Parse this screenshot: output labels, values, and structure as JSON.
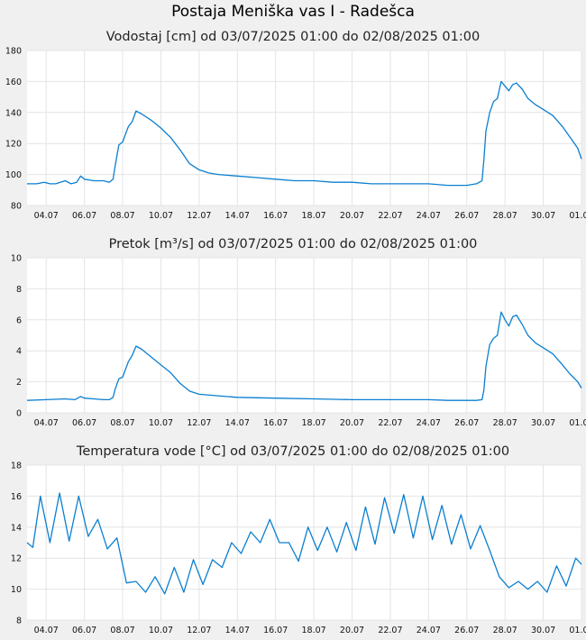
{
  "page": {
    "title": "Postaja Meniška vas I - Radešca"
  },
  "colors": {
    "line": "#0a7fd0",
    "plot_bg": "#ffffff",
    "grid": "#e4e4e4",
    "page_bg": "#f0f0f0"
  },
  "chart_data": [
    {
      "type": "line",
      "title": "Vodostaj [cm] od 03/07/2025 01:00 do 02/08/2025 01:00",
      "ylim": [
        80,
        180
      ],
      "yticks": [
        80,
        100,
        120,
        140,
        160,
        180
      ],
      "xticks": [
        "04.07",
        "06.07",
        "08.07",
        "10.07",
        "12.07",
        "14.07",
        "16.07",
        "18.07",
        "20.07",
        "22.07",
        "24.07",
        "26.07",
        "28.07",
        "30.07",
        "01.08"
      ],
      "grid": true,
      "series": [
        {
          "x": [
            3.0,
            3.5,
            3.9,
            4.2,
            4.5,
            5.0,
            5.3,
            5.6,
            5.8,
            6.0,
            6.5,
            7.0,
            7.3,
            7.5,
            7.6,
            7.8,
            8.0,
            8.3,
            8.5,
            8.7,
            9.0,
            9.5,
            10.0,
            10.5,
            11.0,
            11.5,
            12.0,
            12.5,
            13.0,
            14.0,
            15.0,
            16.0,
            17.0,
            18.0,
            19.0,
            20.0,
            21.0,
            22.0,
            23.0,
            24.0,
            25.0,
            26.0,
            26.5,
            26.8,
            26.9,
            27.0,
            27.2,
            27.4,
            27.6,
            27.8,
            28.0,
            28.2,
            28.4,
            28.6,
            28.9,
            29.2,
            29.6,
            30.0,
            30.5,
            31.0,
            31.4,
            31.8,
            32.0
          ],
          "y": [
            94,
            94,
            95,
            94,
            94,
            96,
            94,
            95,
            99,
            97,
            96,
            96,
            95,
            97,
            105,
            119,
            121,
            131,
            134,
            141,
            139,
            135,
            130,
            124,
            116,
            107,
            103,
            101,
            100,
            99,
            98,
            97,
            96,
            96,
            95,
            95,
            94,
            94,
            94,
            94,
            93,
            93,
            94,
            96,
            110,
            128,
            140,
            147,
            149,
            160,
            157,
            154,
            158,
            159,
            155,
            149,
            145,
            142,
            138,
            131,
            124,
            117,
            110
          ]
        }
      ]
    },
    {
      "type": "line",
      "title": "Pretok [m³/s] od 03/07/2025 01:00 do 02/08/2025 01:00",
      "ylim": [
        0,
        10
      ],
      "yticks": [
        0,
        2,
        4,
        6,
        8,
        10
      ],
      "xticks": [
        "04.07",
        "06.07",
        "08.07",
        "10.07",
        "12.07",
        "14.07",
        "16.07",
        "18.07",
        "20.07",
        "22.07",
        "24.07",
        "26.07",
        "28.07",
        "30.07",
        "01.08"
      ],
      "grid": true,
      "series": [
        {
          "x": [
            3.0,
            4.0,
            5.0,
            5.5,
            5.8,
            6.0,
            6.5,
            7.0,
            7.3,
            7.5,
            7.6,
            7.8,
            8.0,
            8.3,
            8.5,
            8.7,
            9.0,
            9.5,
            10.0,
            10.5,
            11.0,
            11.5,
            12.0,
            13.0,
            14.0,
            16.0,
            18.0,
            20.0,
            22.0,
            24.0,
            25.0,
            26.0,
            26.5,
            26.8,
            26.9,
            27.0,
            27.2,
            27.4,
            27.6,
            27.8,
            28.0,
            28.2,
            28.4,
            28.6,
            28.9,
            29.2,
            29.6,
            30.0,
            30.5,
            31.0,
            31.4,
            31.8,
            32.0
          ],
          "y": [
            0.8,
            0.85,
            0.9,
            0.85,
            1.05,
            0.95,
            0.9,
            0.85,
            0.85,
            1.0,
            1.5,
            2.2,
            2.3,
            3.3,
            3.7,
            4.3,
            4.1,
            3.6,
            3.1,
            2.6,
            1.9,
            1.4,
            1.2,
            1.1,
            1.0,
            0.95,
            0.9,
            0.85,
            0.85,
            0.85,
            0.8,
            0.8,
            0.8,
            0.85,
            1.5,
            3.0,
            4.4,
            4.8,
            5.0,
            6.5,
            6.0,
            5.6,
            6.2,
            6.3,
            5.7,
            5.0,
            4.5,
            4.2,
            3.8,
            3.1,
            2.5,
            2.0,
            1.6
          ]
        }
      ]
    },
    {
      "type": "line",
      "title": "Temperatura vode [°C] od 03/07/2025 01:00 do 02/08/2025 01:00",
      "ylim": [
        8,
        18
      ],
      "yticks": [
        8,
        10,
        12,
        14,
        16,
        18
      ],
      "xticks": [
        "04.07",
        "06.07",
        "08.07",
        "10.07",
        "12.07",
        "14.07",
        "16.07",
        "18.07",
        "20.07",
        "22.07",
        "24.07",
        "26.07",
        "28.07",
        "30.07",
        "01.08"
      ],
      "grid": true,
      "series": [
        {
          "x": [
            3.0,
            3.3,
            3.7,
            4.2,
            4.7,
            5.2,
            5.7,
            6.2,
            6.7,
            7.2,
            7.7,
            8.2,
            8.7,
            9.2,
            9.7,
            10.2,
            10.7,
            11.2,
            11.7,
            12.2,
            12.7,
            13.2,
            13.7,
            14.2,
            14.7,
            15.2,
            15.7,
            16.2,
            16.7,
            17.2,
            17.7,
            18.2,
            18.7,
            19.2,
            19.7,
            20.2,
            20.7,
            21.2,
            21.7,
            22.2,
            22.7,
            23.2,
            23.7,
            24.2,
            24.7,
            25.2,
            25.7,
            26.2,
            26.7,
            27.2,
            27.7,
            28.2,
            28.7,
            29.2,
            29.7,
            30.2,
            30.7,
            31.2,
            31.7,
            32.0
          ],
          "y": [
            13.0,
            12.7,
            16.0,
            13.0,
            16.2,
            13.1,
            16.0,
            13.4,
            14.5,
            12.6,
            13.3,
            10.4,
            10.5,
            9.8,
            10.8,
            9.7,
            11.4,
            9.8,
            11.9,
            10.3,
            11.9,
            11.4,
            13.0,
            12.3,
            13.7,
            13.0,
            14.5,
            13.0,
            13.0,
            11.8,
            14.0,
            12.5,
            14.0,
            12.4,
            14.3,
            12.5,
            15.3,
            12.9,
            15.9,
            13.6,
            16.1,
            13.3,
            16.0,
            13.2,
            15.4,
            12.9,
            14.8,
            12.6,
            14.1,
            12.5,
            10.8,
            10.1,
            10.5,
            10.0,
            10.5,
            9.8,
            11.5,
            10.2,
            12.0,
            11.6
          ]
        }
      ]
    }
  ]
}
